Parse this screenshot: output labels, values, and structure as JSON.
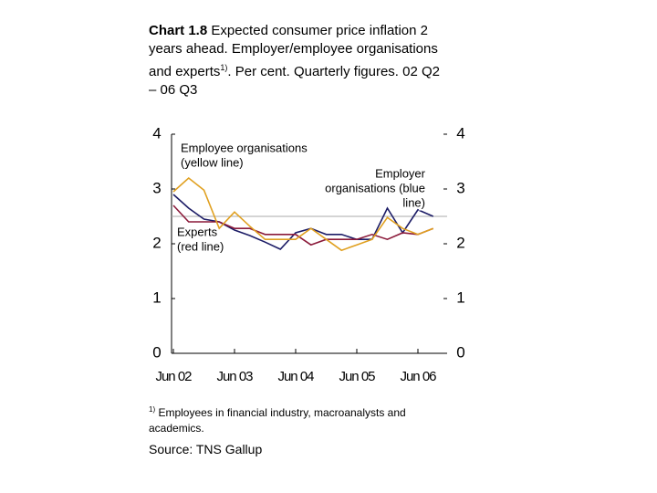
{
  "chart_data": {
    "type": "line",
    "title_bold": "Chart 1.8",
    "title": " Expected consumer price inflation 2 years ahead. Employer/employee organisations and experts",
    "title_sup": "1)",
    "title_end": ". Per cent. Quarterly figures. 02 Q2 – 06 Q3",
    "categories": [
      "Jun 02",
      null,
      null,
      null,
      "Jun 03",
      null,
      null,
      null,
      "Jun 04",
      null,
      null,
      null,
      "Jun 05",
      null,
      null,
      null,
      "Jun 06",
      null
    ],
    "series": [
      {
        "name": "Employer organisations",
        "color": "#1c1c66",
        "values": [
          2.9,
          2.65,
          2.45,
          2.4,
          2.25,
          2.15,
          2.03,
          1.9,
          2.2,
          2.28,
          2.17,
          2.17,
          2.08,
          2.08,
          2.65,
          2.2,
          2.62,
          2.5
        ]
      },
      {
        "name": "Experts",
        "color": "#8b1a3a",
        "values": [
          2.7,
          2.4,
          2.4,
          2.4,
          2.28,
          2.28,
          2.17,
          2.17,
          2.17,
          1.98,
          2.08,
          2.08,
          2.08,
          2.17,
          2.08,
          2.2,
          2.17,
          2.28
        ]
      },
      {
        "name": "Employee organisations",
        "color": "#e0a020",
        "values": [
          2.95,
          3.2,
          2.98,
          2.28,
          2.58,
          2.32,
          2.08,
          2.08,
          2.08,
          2.28,
          2.08,
          1.88,
          1.98,
          2.08,
          2.48,
          2.28,
          2.17,
          2.28
        ]
      }
    ],
    "reference_line": 2.5,
    "ylim": [
      0,
      4
    ],
    "yticks": [
      0,
      1,
      2,
      3,
      4
    ],
    "y2lim": [
      0,
      4
    ],
    "y2ticks": [
      0,
      1,
      2,
      3,
      4
    ],
    "annotations": [
      {
        "lines": [
          "Employee organisations",
          "(yellow line)"
        ]
      },
      {
        "lines": [
          "Employer",
          "organisations (blue",
          "line)"
        ]
      },
      {
        "lines": [
          "Experts",
          "(red line)"
        ]
      }
    ],
    "footnote_sup": "1)",
    "footnote": " Employees in financial industry, macroanalysts and academics.",
    "source": "Source: TNS Gallup"
  }
}
